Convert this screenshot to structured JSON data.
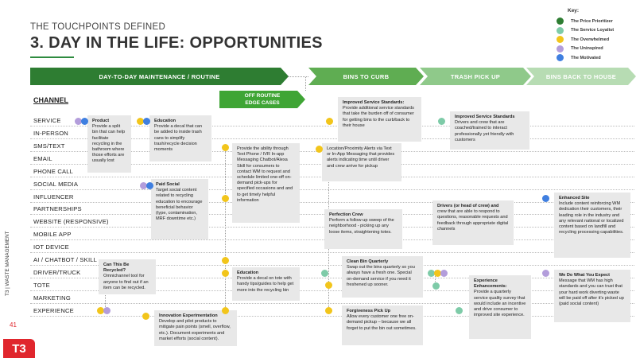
{
  "header": {
    "eyebrow": "THE TOUCHPOINTS DEFINED",
    "title": "3. DAY IN THE LIFE: OPPORTUNITIES"
  },
  "legend": {
    "title": "Key:",
    "items": [
      {
        "label": "The Price Prioritizer",
        "color": "#2e7d32"
      },
      {
        "label": "The Service Loyalist",
        "color": "#7ecba8"
      },
      {
        "label": "The Overwhelmed",
        "color": "#f2c51b"
      },
      {
        "label": "The Uninspired",
        "color": "#b39ddb"
      },
      {
        "label": "The Motivated",
        "color": "#3f7fe0"
      }
    ]
  },
  "phases": [
    "DAY-TO-DAY MAINTENANCE / ROUTINE",
    "BINS TO CURB",
    "TRASH PICK UP",
    "BINS BACK TO HOUSE"
  ],
  "subphase": "OFF ROUTINE\nEDGE CASES",
  "channel_header": "CHANNEL",
  "channels": [
    "SERVICE",
    "IN-PERSON",
    "SMS/TEXT",
    "EMAIL",
    "PHONE CALL",
    "SOCIAL MEDIA",
    "INFLUENCER",
    "PARTNERSHIPS",
    "WEBSITE (RESPONSIVE)",
    "MOBILE APP",
    "IOT DEVICE",
    "AI / CHATBOT / SKILL",
    "DRIVER/TRUCK",
    "TOTE",
    "MARKETING",
    "EXPERIENCE"
  ],
  "cards": {
    "product": {
      "title": "Product",
      "body": "Provide a split bin that can help facilitate recycling in the bathroom where those efforts are usually lost"
    },
    "education1": {
      "title": "Education",
      "body": "Provide a decal that can be added to inside trash cans to simplify trash/recycle decision moments"
    },
    "paid_social": {
      "title": "Paid Social",
      "body": "Target social content related to recycling education to encourage beneficial behavior (type, contamination, MRF downtime etc.)"
    },
    "phone_ivr": {
      "title": "",
      "body": "Provide the ability through Text Phone / IVR In-app Messaging Chatbot/Alexa Skill for consumers to contact WM to request and schedule limited one-off on-demand pick-ups for specified occasions and and to get timely helpful information"
    },
    "recycled": {
      "title": "Can This Be Recycled?",
      "body": "Omnichannel tool for anyone to find out if an item can be recycled."
    },
    "education2": {
      "title": "Education",
      "body": "Provide a decal on tote with handy tips/guides to help get more into the recycling bin"
    },
    "innovation": {
      "title": "Innovation Experimentation",
      "body": "Develop and pilot products to mitigate pain points (smell, overflow, etc.). Document experiments and market efforts (social content)."
    },
    "improved1": {
      "title": "Improved Service Standards:",
      "body": "Provide additional service standards that take the burden off of consumer for getting bins to the curb/back to their house"
    },
    "location": {
      "title": "",
      "body": "Location/Proximity Alerts via Text or In-App Messaging that provides alerts indicating time until driver and crew arrive for pickup"
    },
    "perfection": {
      "title": "Perfection Crew",
      "body": "Perform a follow-up sweep of the neighborhood - picking up any loose items, straightening totes."
    },
    "clean_bin": {
      "title": "Clean Bin Quarterly",
      "body": "Swap out the bins quarterly so you always have a fresh one. Special on-demand service if you need it freshened up sooner."
    },
    "forgiveness": {
      "title": "Forgiveness Pick Up",
      "body": "Allow every customer one free on-demand pickup – because we all forget to put the bin out sometimes."
    },
    "improved2": {
      "title": "Improved Service Standards",
      "body": "Drivers and crew that are coached/trained to interact professionally yet friendly with customers"
    },
    "drivers": {
      "title": "Drivers (or head of crew) and",
      "body": "crew that are able to respond to questions, reasonable requests and feedback through appropriate digital channels"
    },
    "experience": {
      "title": "Experience Enhancements:",
      "body": "Provide a quarterly service quality survey that would include an incentive and drive consumer to improved site experience."
    },
    "enhanced_site": {
      "title": "Enhanced Site",
      "body": "Include content reinforcing WM dedication their customers, their leading role in the industry and any relevant national or localized content based on landfill and recycling processing capabilities."
    },
    "we_do": {
      "title": "We Do What You Expect",
      "body": "Message that WM has high standards and you can trust that your hard work diverting waste will be paid off after it's picked up (paid social content)"
    }
  },
  "sidebar": {
    "text": "T3 | WASTE MANAGEMENT",
    "page": "41",
    "logo": "T3"
  }
}
